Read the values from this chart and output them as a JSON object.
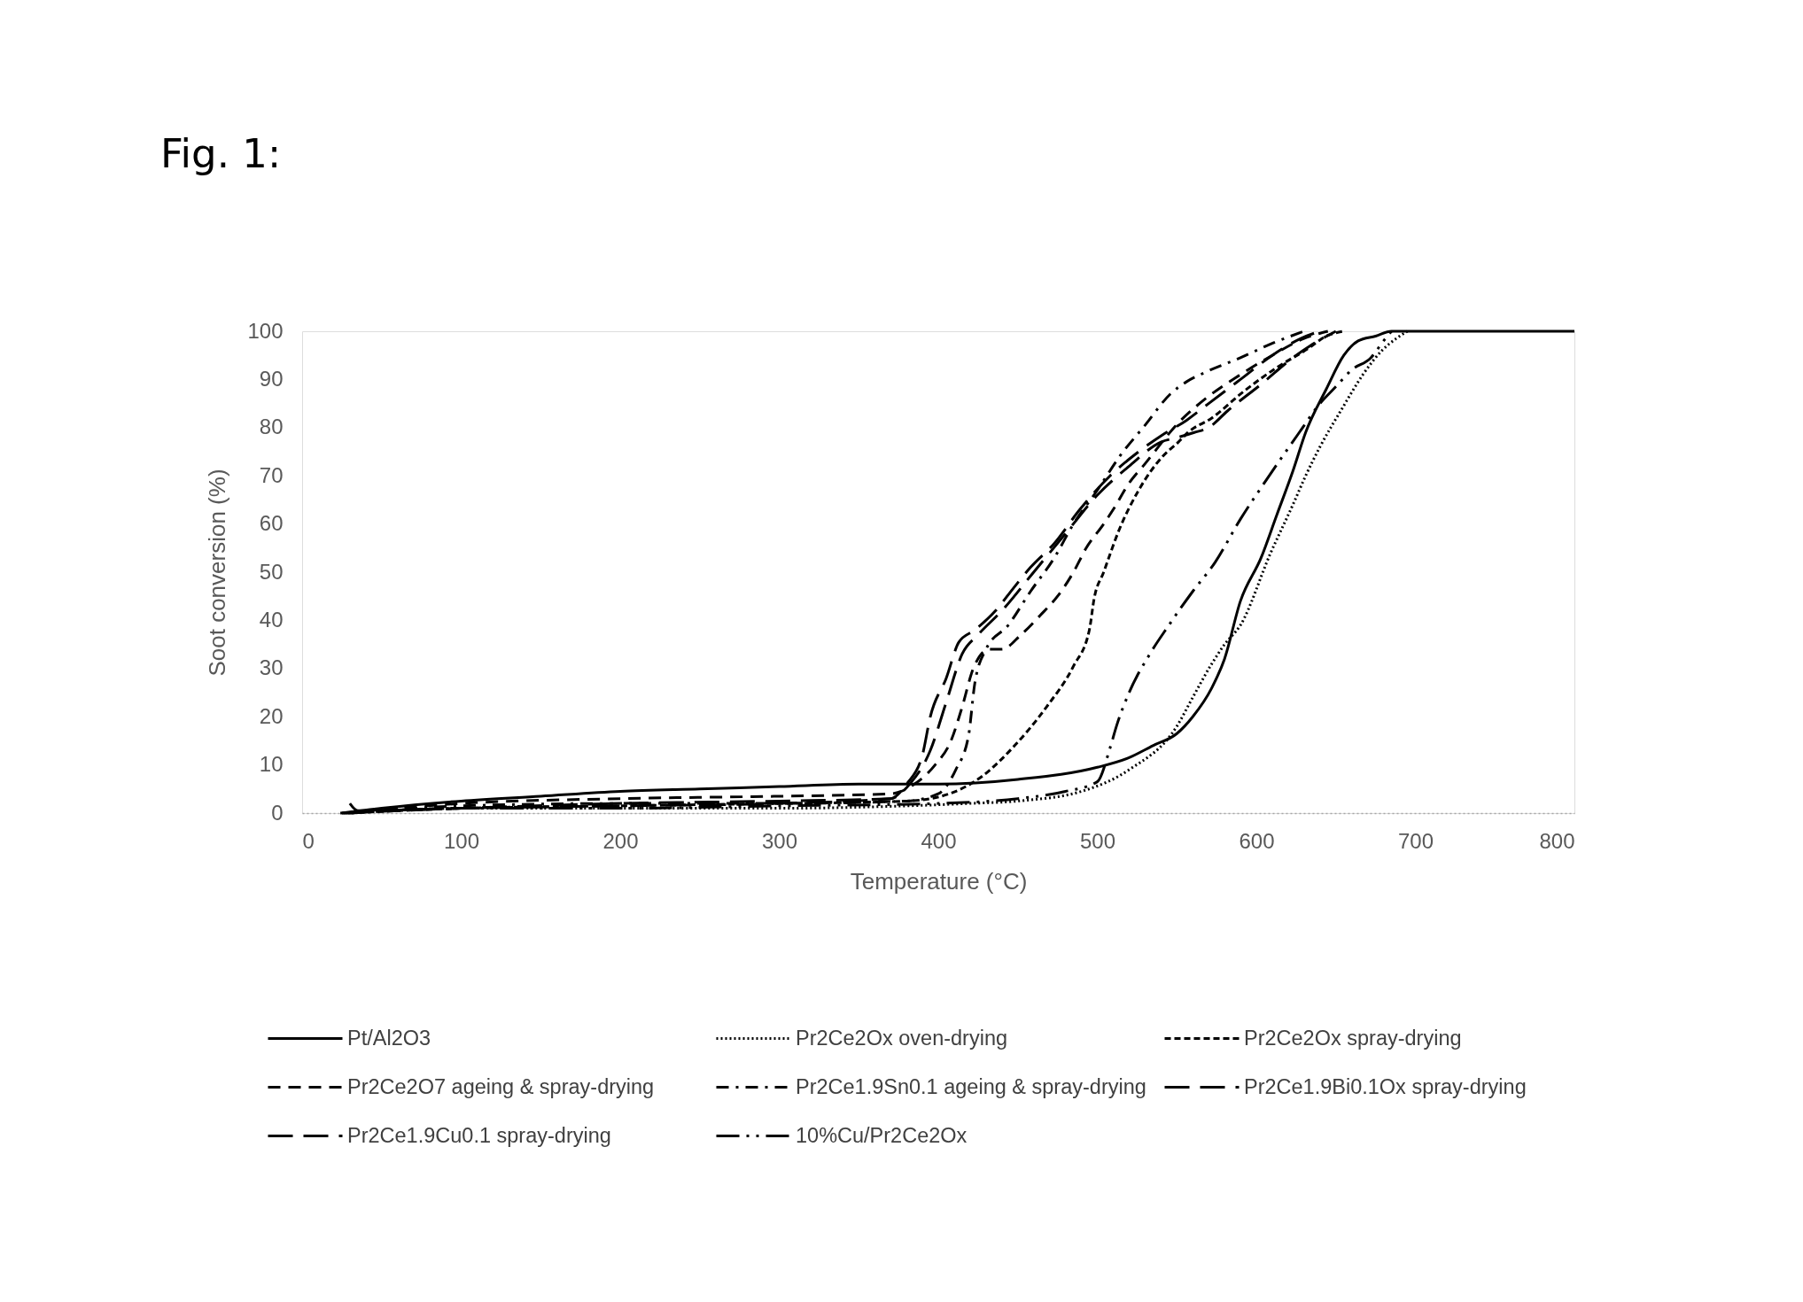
{
  "chart_data": {
    "type": "line",
    "title": "Fig. 1:",
    "xlabel": "Temperature (°C)",
    "ylabel": "Soot conversion (%)",
    "xlim": [
      0,
      800
    ],
    "xticks": [
      0,
      100,
      200,
      300,
      400,
      500,
      600,
      700,
      800
    ],
    "ylim": [
      0,
      100
    ],
    "yticks": [
      0,
      10,
      20,
      30,
      40,
      50,
      60,
      70,
      80,
      90,
      100
    ],
    "legend": "bottom",
    "series": [
      {
        "name": "Pt/Al2O3",
        "color": "#000000",
        "line_style": "solid",
        "x": [
          25,
          50,
          100,
          150,
          200,
          250,
          300,
          350,
          400,
          450,
          500,
          520,
          535,
          550,
          560,
          572,
          580,
          590,
          603,
          613,
          623,
          631,
          644,
          655,
          664,
          675,
          685,
          700,
          800
        ],
        "values": [
          0,
          1,
          2.5,
          3.5,
          4.5,
          5,
          5.5,
          6,
          6,
          7,
          9.5,
          11.5,
          14,
          16.5,
          20,
          26,
          32,
          44,
          53,
          62,
          71,
          79,
          88,
          95,
          98,
          99,
          100,
          100,
          100
        ]
      },
      {
        "name": "Pr2Ce2Ox oven-drying",
        "color": "#000000",
        "line_style": "dotted",
        "x": [
          27,
          100,
          200,
          300,
          380,
          420,
          450,
          490,
          520,
          550,
          560,
          572,
          580,
          590,
          609,
          623,
          631,
          640,
          654,
          667,
          679,
          688,
          695
        ],
        "values": [
          0,
          1,
          1,
          1,
          1.5,
          2,
          2.5,
          4.5,
          9,
          18,
          24,
          31,
          35,
          39,
          54,
          64,
          70,
          76,
          84,
          91,
          96,
          98.5,
          100
        ]
      },
      {
        "name": "Pr2Ce2Ox spray-drying",
        "color": "#000000",
        "line_style": "shortdash",
        "x": [
          29,
          100,
          200,
          300,
          380,
          402,
          427,
          448,
          468,
          485,
          495,
          498,
          504,
          514,
          526,
          541,
          551,
          557,
          572,
          592,
          613,
          633,
          644,
          655
        ],
        "values": [
          0,
          1,
          1.5,
          2,
          2.5,
          3.5,
          7.5,
          14,
          22,
          30.5,
          38,
          44.5,
          50,
          59,
          67,
          74,
          77,
          79,
          82,
          87.5,
          92.5,
          96.5,
          99,
          100
        ]
      },
      {
        "name": "Pr2Ce2O7 ageing & spray-drying",
        "color": "#000000",
        "line_style": "dashed",
        "x": [
          26,
          100,
          200,
          300,
          370,
          385,
          398,
          408,
          415,
          422,
          432,
          440,
          452,
          464,
          475,
          485,
          493,
          504,
          510,
          520,
          530,
          551,
          568,
          590,
          610,
          630,
          645
        ],
        "values": [
          0,
          2,
          3,
          3.5,
          4,
          6,
          10,
          15,
          22,
          30,
          34,
          34,
          37,
          41,
          45,
          50,
          55,
          60,
          63,
          68.5,
          72.5,
          81,
          86,
          91,
          95,
          98.5,
          100
        ]
      },
      {
        "name": "Pr2Ce1.9Sn0.1 ageing & spray-drying",
        "color": "#000000",
        "line_style": "dashdot",
        "x": [
          28,
          100,
          200,
          300,
          380,
          400,
          411,
          419,
          423,
          430,
          444,
          458,
          473,
          485,
          500,
          514,
          530,
          546,
          556,
          568,
          590,
          610,
          630
        ],
        "values": [
          0,
          1.5,
          2,
          2,
          2.5,
          4,
          9,
          16,
          27,
          34,
          39,
          46,
          53,
          60,
          67,
          74,
          80.5,
          87,
          89.5,
          91.5,
          94.5,
          97.5,
          100
        ]
      },
      {
        "name": "Pr2Ce1.9Bi0.1Ox spray-drying",
        "color": "#000000",
        "line_style": "longdash",
        "x": [
          30,
          35,
          100,
          200,
          300,
          370,
          380,
          390,
          395,
          405,
          413,
          423,
          436,
          448,
          458,
          473,
          489,
          508,
          524,
          541,
          556,
          570,
          590,
          610,
          628,
          640
        ],
        "values": [
          2,
          0.5,
          1,
          1.5,
          2,
          3,
          6,
          12,
          20,
          28,
          35.5,
          38,
          42,
          47,
          51,
          56,
          63,
          70,
          74.5,
          78.5,
          81.5,
          85,
          90,
          95,
          98.5,
          100
        ]
      },
      {
        "name": "Pr2Ce1.9Cu0.1 spray-drying",
        "color": "#000000",
        "line_style": "longdash",
        "x": [
          24,
          100,
          200,
          300,
          370,
          382,
          395,
          405,
          415,
          425,
          440,
          460,
          480,
          500,
          520,
          540,
          551,
          561,
          570,
          582,
          603,
          623,
          634,
          650
        ],
        "values": [
          0,
          1,
          2,
          2.5,
          3,
          6,
          13,
          23,
          33,
          37,
          42,
          50,
          58,
          66,
          72,
          77,
          78,
          79,
          80,
          83.5,
          89,
          94.5,
          97,
          100
        ]
      },
      {
        "name": "10%Cu/Pr2Ce2Ox",
        "color": "#000000",
        "line_style": "longdashdotdot",
        "x": [
          31,
          100,
          200,
          300,
          400,
          450,
          480,
          500,
          508,
          512,
          520,
          533,
          545,
          560,
          574,
          590,
          606,
          627,
          640,
          650,
          660,
          672,
          680,
          685
        ],
        "values": [
          0,
          1,
          1,
          1.5,
          2,
          3,
          4.5,
          6.5,
          13.5,
          18,
          25,
          33,
          39,
          46,
          52,
          61,
          69,
          79,
          85,
          88.5,
          92,
          94.5,
          98,
          100
        ]
      }
    ]
  }
}
